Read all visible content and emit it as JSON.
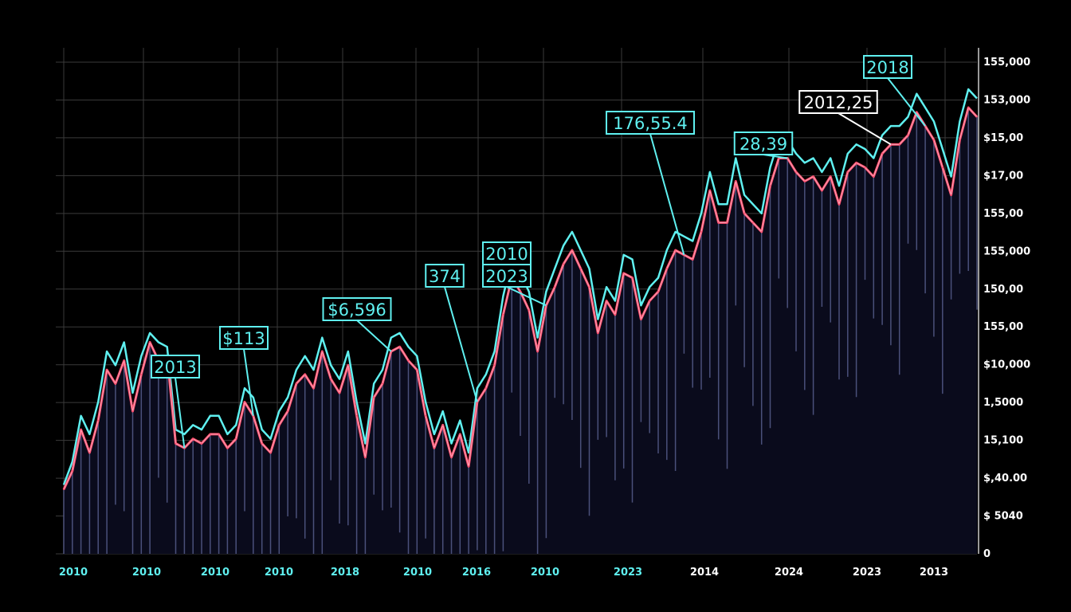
{
  "colors": {
    "background": "#000000",
    "grid": "#3a3a3a",
    "line_cyan": "#5ff0f0",
    "line_red": "#ff4d6d",
    "line_white": "#ffffff",
    "area_fill": "#0a0b1c",
    "drop_line": "#5a6292",
    "label_cyan": "#5ff0f0",
    "label_white": "#ffffff"
  },
  "chart_data": {
    "type": "line",
    "title": "",
    "xlabel": "",
    "ylabel": "",
    "grid": true,
    "x_tick_labels": [
      {
        "text": "2010",
        "color": "cyan"
      },
      {
        "text": "2010",
        "color": "cyan"
      },
      {
        "text": "2010",
        "color": "cyan"
      },
      {
        "text": "2010",
        "color": "cyan"
      },
      {
        "text": "2018",
        "color": "cyan"
      },
      {
        "text": "2010",
        "color": "cyan"
      },
      {
        "text": "2016",
        "color": "cyan"
      },
      {
        "text": "2010",
        "color": "cyan"
      },
      {
        "text": "2023",
        "color": "cyan"
      },
      {
        "text": "2014",
        "color": "white"
      },
      {
        "text": "2024",
        "color": "white"
      },
      {
        "text": "2023",
        "color": "white"
      },
      {
        "text": "2013",
        "color": "white"
      }
    ],
    "y_tick_labels": [
      "0",
      "$ 5040",
      "$,40.00",
      "15,100",
      "1,5000",
      "$10,000",
      "155,00",
      "150,00",
      "155,000",
      "155,00",
      "$17,00",
      "$15,00",
      "153,000",
      "155,000"
    ],
    "series": [
      {
        "values": [
          14,
          18,
          27,
          22,
          29,
          40,
          37,
          42,
          31,
          39,
          46,
          42,
          43,
          24,
          23,
          25,
          24,
          26,
          26,
          23,
          25,
          33,
          30,
          24,
          22,
          28,
          31,
          37,
          39,
          36,
          44,
          38,
          35,
          41,
          30,
          21,
          34,
          37,
          44,
          45,
          42,
          40,
          30,
          23,
          28,
          21,
          26,
          19,
          33,
          36,
          41,
          52,
          60,
          57,
          53,
          44,
          54,
          58,
          63,
          66,
          62,
          58,
          48,
          55,
          52,
          61,
          60,
          51,
          55,
          57,
          62,
          66,
          65,
          64,
          70,
          79,
          72,
          72,
          81,
          74,
          72,
          70,
          80,
          86,
          86,
          83,
          81,
          82,
          79,
          82,
          76,
          83,
          85,
          84,
          82,
          87,
          89,
          89,
          91,
          96,
          93,
          90,
          84,
          78,
          90,
          97,
          95
        ],
        "color": "mixed",
        "peak_values_cyan": [
          15,
          20,
          30,
          26,
          33,
          44,
          41,
          46,
          35,
          43,
          48,
          46,
          45,
          27,
          26,
          28,
          27,
          30,
          30,
          26,
          28,
          36,
          34,
          27,
          25,
          31,
          34,
          40,
          43,
          40,
          47,
          41,
          38,
          44,
          33,
          24,
          37,
          40,
          47,
          48,
          45,
          43,
          33,
          26,
          31,
          24,
          29,
          22,
          36,
          39,
          44,
          56,
          64,
          61,
          57,
          47,
          57,
          62,
          67,
          70,
          66,
          62,
          51,
          58,
          55,
          65,
          64,
          54,
          58,
          60,
          66,
          70,
          69,
          68,
          74,
          83,
          76,
          76,
          86,
          78,
          76,
          74,
          84,
          90,
          90,
          87,
          85,
          86,
          83,
          86,
          80,
          87,
          89,
          88,
          86,
          91,
          93,
          93,
          95,
          100,
          97,
          94,
          88,
          82,
          94,
          101,
          99
        ]
      }
    ],
    "annotations": [
      {
        "text": "2013",
        "color": "cyan",
        "point_index": 14
      },
      {
        "text": "$113",
        "color": "cyan",
        "point_index": 22
      },
      {
        "text": "$6,596",
        "color": "cyan",
        "point_index": 38
      },
      {
        "text": "374",
        "color": "cyan",
        "point_index": 48
      },
      {
        "text": "2010",
        "color": "cyan",
        "point_index": 52
      },
      {
        "text": "2023",
        "color": "cyan",
        "point_index": 56
      },
      {
        "text": "176,55.4",
        "color": "cyan",
        "point_index": 72
      },
      {
        "text": "28,39",
        "color": "cyan",
        "point_index": 84
      },
      {
        "text": "2012,25",
        "color": "white",
        "point_index": 96
      },
      {
        "text": "2018",
        "color": "cyan",
        "point_index": 100
      }
    ]
  }
}
